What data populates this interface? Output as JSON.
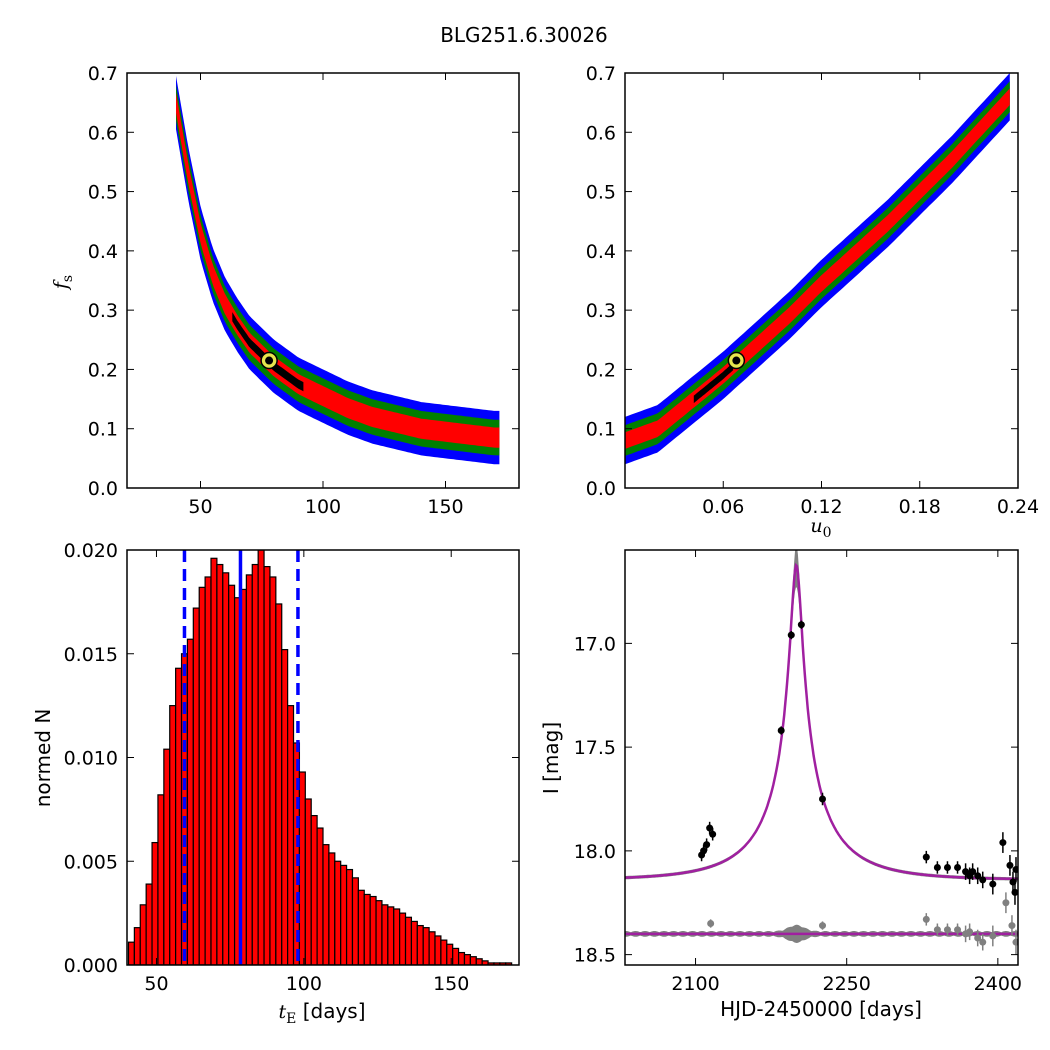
{
  "figure": {
    "title": "BLG251.6.30026",
    "colors": {
      "level3": "#0000ff",
      "level2": "#007f00",
      "level1": "#ff0000",
      "level0": "#000000",
      "best_fill": "#e6e64d",
      "hist_bar": "#ff0000",
      "hist_edge": "#000000",
      "vline": "#0000ff",
      "model": "#a020a0",
      "model_band": "#808080",
      "data_main": "#000000",
      "data_resid": "#808080"
    }
  },
  "chart_data": [
    {
      "id": "fs-vs-tE",
      "type": "heatmap",
      "xlabel": "",
      "ylabel": "f_s",
      "xlim": [
        20,
        180
      ],
      "ylim": [
        0.0,
        0.7
      ],
      "xticks": [
        50,
        100,
        150
      ],
      "xtick_labels": [
        "50",
        "100",
        "150"
      ],
      "yticks": [
        0.0,
        0.1,
        0.2,
        0.3,
        0.4,
        0.5,
        0.6,
        0.7
      ],
      "ytick_labels": [
        "0.0",
        "0.1",
        "0.2",
        "0.3",
        "0.4",
        "0.5",
        "0.6",
        "0.7"
      ],
      "ridge": {
        "x": [
          40,
          45,
          50,
          55,
          60,
          65,
          70,
          75,
          80,
          90,
          100,
          110,
          120,
          130,
          140,
          150,
          160,
          170
        ],
        "y": [
          0.65,
          0.53,
          0.43,
          0.36,
          0.31,
          0.275,
          0.245,
          0.225,
          0.205,
          0.175,
          0.155,
          0.135,
          0.12,
          0.11,
          0.1,
          0.095,
          0.09,
          0.085
        ]
      },
      "confidence_widths": [
        0.017,
        0.03,
        0.045
      ],
      "contour_x_range": [
        40,
        172
      ],
      "core_x_range": [
        63,
        92
      ],
      "best_fit": {
        "x": 78,
        "y": 0.215
      }
    },
    {
      "id": "fs-vs-u0",
      "type": "heatmap",
      "xlabel": "u_0",
      "ylabel": "",
      "xlim": [
        0.0,
        0.24
      ],
      "ylim": [
        0.0,
        0.7
      ],
      "xticks": [
        0.06,
        0.12,
        0.18,
        0.24
      ],
      "xtick_labels": [
        "0.06",
        "0.12",
        "0.18",
        "0.24"
      ],
      "yticks": [
        0.0,
        0.1,
        0.2,
        0.3,
        0.4,
        0.5,
        0.6,
        0.7
      ],
      "ytick_labels": [
        "0.0",
        "0.1",
        "0.2",
        "0.3",
        "0.4",
        "0.5",
        "0.6",
        "0.7"
      ],
      "ridge": {
        "x": [
          0.0,
          0.02,
          0.04,
          0.06,
          0.08,
          0.1,
          0.12,
          0.14,
          0.16,
          0.18,
          0.2,
          0.22,
          0.235
        ],
        "y": [
          0.08,
          0.1,
          0.145,
          0.19,
          0.24,
          0.29,
          0.345,
          0.395,
          0.445,
          0.5,
          0.555,
          0.615,
          0.66
        ]
      },
      "confidence_widths": [
        0.014,
        0.026,
        0.04
      ],
      "contour_x_range": [
        0.0,
        0.235
      ],
      "core_x_range": [
        0.042,
        0.066
      ],
      "best_fit": {
        "x": 0.068,
        "y": 0.215
      }
    },
    {
      "id": "tE-histogram",
      "type": "bar",
      "xlabel": "t_E  [days]",
      "ylabel": "normed N",
      "xlim": [
        40,
        173
      ],
      "ylim": [
        0.0,
        0.02
      ],
      "xticks": [
        50,
        100,
        150
      ],
      "xtick_labels": [
        "50",
        "100",
        "150"
      ],
      "yticks": [
        0.0,
        0.005,
        0.01,
        0.015,
        0.02
      ],
      "ytick_labels": [
        "0.000",
        "0.005",
        "0.010",
        "0.015",
        "0.020"
      ],
      "bin_start": 40.5,
      "bin_width": 2.0,
      "values": [
        0.0011,
        0.0018,
        0.0029,
        0.0039,
        0.0059,
        0.0082,
        0.0104,
        0.0125,
        0.0143,
        0.015,
        0.0157,
        0.0172,
        0.0182,
        0.0187,
        0.0196,
        0.0193,
        0.0189,
        0.0183,
        0.0177,
        0.0181,
        0.0188,
        0.0193,
        0.02,
        0.0192,
        0.0187,
        0.0174,
        0.0152,
        0.0125,
        0.0107,
        0.0093,
        0.008,
        0.0072,
        0.0066,
        0.0058,
        0.0054,
        0.005,
        0.0048,
        0.0046,
        0.0042,
        0.0036,
        0.0034,
        0.0033,
        0.0031,
        0.0029,
        0.0028,
        0.0027,
        0.0025,
        0.0023,
        0.0021,
        0.0019,
        0.0018,
        0.0016,
        0.0014,
        0.0012,
        0.001,
        0.0008,
        0.0006,
        0.0005,
        0.0004,
        0.0003,
        0.0002,
        0.0001,
        0.0001,
        0.0001,
        0.0001
      ],
      "vlines": [
        {
          "x": 59.5,
          "style": "dashed"
        },
        {
          "x": 78.5,
          "style": "solid"
        },
        {
          "x": 98,
          "style": "dashed"
        }
      ]
    },
    {
      "id": "light-curve",
      "type": "line",
      "xlabel": "HJD-2450000 [days]",
      "ylabel": "I [mag]",
      "xlim": [
        2030,
        2420
      ],
      "ylim": [
        18.55,
        16.55
      ],
      "y_inverted": true,
      "xticks": [
        2100,
        2250,
        2400
      ],
      "xtick_labels": [
        "2100",
        "2250",
        "2400"
      ],
      "yticks": [
        17.0,
        17.5,
        18.0,
        18.5
      ],
      "ytick_labels": [
        "17.0",
        "17.5",
        "18.0",
        "18.5"
      ],
      "model": {
        "t0": 2200,
        "tE": 78,
        "u0": 0.066,
        "fs": 0.215,
        "I_base": 18.14
      },
      "resid_offset": 18.4,
      "series": [
        {
          "name": "",
          "kind": "main",
          "x": [
            2106,
            2108,
            2111,
            2114,
            2117,
            2185,
            2195,
            2205,
            2226,
            2329,
            2340,
            2350,
            2360,
            2368,
            2372,
            2375,
            2380,
            2385,
            2395,
            2405,
            2412,
            2415,
            2417,
            2418
          ],
          "y": [
            18.02,
            18.0,
            17.97,
            17.89,
            17.92,
            17.42,
            16.96,
            16.91,
            17.75,
            18.03,
            18.08,
            18.08,
            18.08,
            18.1,
            18.12,
            18.1,
            18.12,
            18.14,
            18.16,
            17.96,
            18.07,
            18.15,
            18.2,
            18.09
          ],
          "err": [
            0.03,
            0.03,
            0.03,
            0.03,
            0.03,
            0.02,
            0.02,
            0.02,
            0.03,
            0.03,
            0.03,
            0.03,
            0.03,
            0.04,
            0.04,
            0.04,
            0.04,
            0.04,
            0.05,
            0.05,
            0.05,
            0.05,
            0.06,
            0.06
          ]
        },
        {
          "name": "",
          "kind": "residual",
          "x": [
            2115,
            2226,
            2329,
            2340,
            2350,
            2360,
            2368,
            2372,
            2380,
            2385,
            2395,
            2408,
            2414,
            2418
          ],
          "y": [
            18.35,
            18.36,
            18.33,
            18.38,
            18.38,
            18.38,
            18.4,
            18.39,
            18.42,
            18.44,
            18.41,
            18.25,
            18.36,
            18.44
          ],
          "err": [
            0.02,
            0.02,
            0.03,
            0.03,
            0.03,
            0.03,
            0.04,
            0.04,
            0.04,
            0.04,
            0.05,
            0.05,
            0.05,
            0.06
          ]
        }
      ]
    }
  ]
}
